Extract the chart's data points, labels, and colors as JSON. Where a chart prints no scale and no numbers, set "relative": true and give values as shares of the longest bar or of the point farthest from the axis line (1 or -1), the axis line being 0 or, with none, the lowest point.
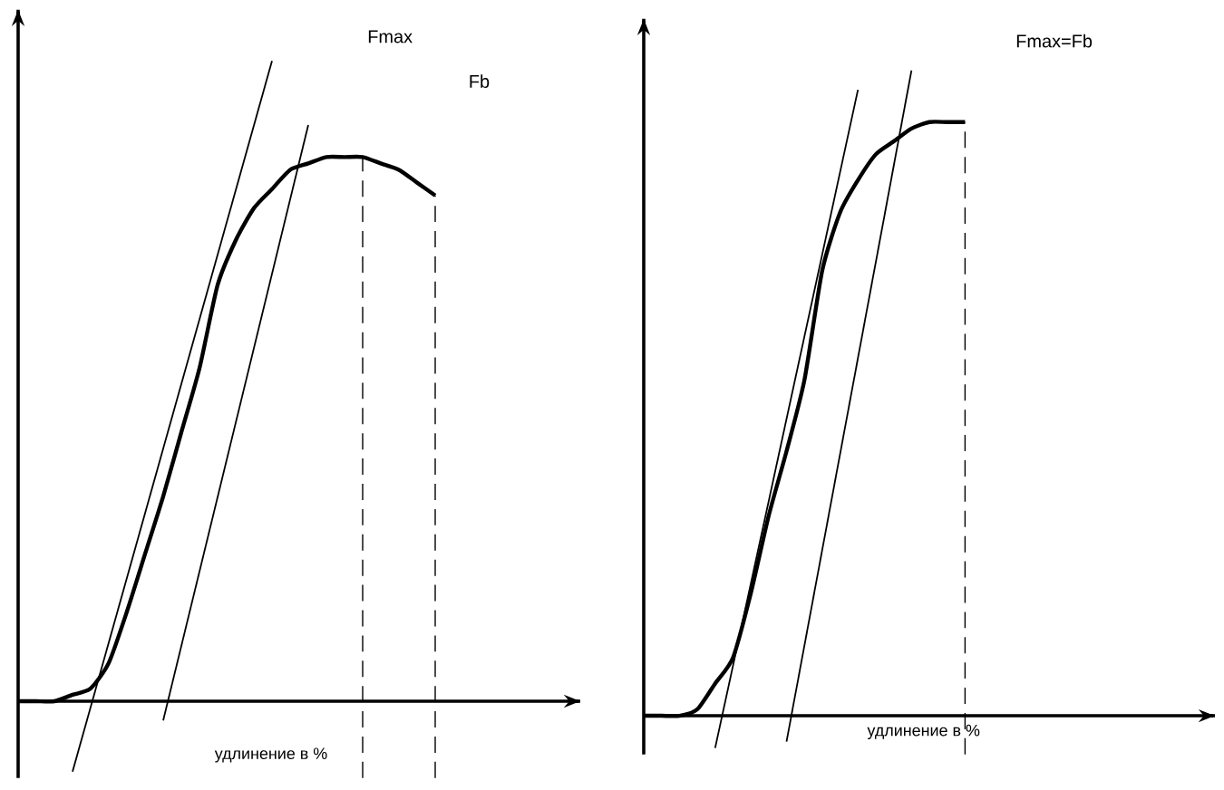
{
  "chart_data": [
    {
      "type": "line",
      "relative": true,
      "xlabel": "удлинение в %",
      "annotations": [
        "Fmax",
        "Fb"
      ],
      "marker": "none",
      "categories": [
        null,
        null,
        null,
        null,
        null,
        null,
        null,
        null,
        null,
        null,
        null,
        null,
        null,
        null,
        null,
        null,
        null,
        null,
        null,
        null,
        null,
        null,
        null,
        null,
        null,
        null,
        null,
        null,
        null,
        null,
        null,
        null
      ],
      "series": [
        {
          "color": "#000000",
          "values": [
            0,
            0,
            0,
            0.01,
            0.02,
            0.06,
            0.14,
            0.23,
            0.32,
            0.42,
            0.52,
            0.65,
            0.72,
            0.77,
            0.8,
            0.83,
            0.84,
            0.85,
            0.85,
            0.85,
            0.84,
            0.83,
            0.81,
            0.79,
            null,
            null,
            null,
            null,
            null,
            null,
            null,
            null
          ]
        },
        {
          "color": "#000000",
          "values": [
            null,
            null,
            null,
            -0.11,
            null,
            null,
            null,
            null,
            null,
            null,
            null,
            null,
            null,
            null,
            1.0,
            null,
            null,
            null,
            null,
            null,
            null,
            null,
            null,
            null,
            null,
            null,
            null,
            null,
            null,
            null,
            null,
            null
          ]
        },
        {
          "color": "#000000",
          "values": [
            null,
            null,
            null,
            null,
            null,
            null,
            null,
            null,
            -0.03,
            null,
            null,
            null,
            null,
            null,
            null,
            null,
            0.9,
            null,
            null,
            null,
            null,
            null,
            null,
            null,
            null,
            null,
            null,
            null,
            null,
            null,
            null,
            null
          ]
        }
      ]
    },
    {
      "type": "line",
      "relative": true,
      "xlabel": "удлинение в %",
      "annotations": [
        "Fmax=Fb"
      ],
      "marker": "none",
      "categories": [
        null,
        null,
        null,
        null,
        null,
        null,
        null,
        null,
        null,
        null,
        null,
        null,
        null,
        null,
        null,
        null,
        null,
        null,
        null,
        null,
        null,
        null,
        null,
        null,
        null,
        null,
        null,
        null,
        null,
        null,
        null,
        null,
        null
      ],
      "series": [
        {
          "color": "#000000",
          "values": [
            0,
            0,
            0,
            0.01,
            0.05,
            0.09,
            0.19,
            0.31,
            0.41,
            0.52,
            0.69,
            0.78,
            0.83,
            0.87,
            0.89,
            0.91,
            0.92,
            0.92,
            0.92,
            null,
            null,
            null,
            null,
            null,
            null,
            null,
            null,
            null,
            null,
            null,
            null,
            null,
            null
          ]
        },
        {
          "color": "#000000",
          "values": [
            null,
            null,
            null,
            null,
            -0.05,
            null,
            null,
            null,
            null,
            null,
            null,
            null,
            0.97,
            null,
            null,
            null,
            null,
            null,
            null,
            null,
            null,
            null,
            null,
            null,
            null,
            null,
            null,
            null,
            null,
            null,
            null,
            null,
            null
          ]
        },
        {
          "color": "#000000",
          "values": [
            null,
            null,
            null,
            null,
            null,
            null,
            null,
            null,
            -0.04,
            null,
            null,
            null,
            null,
            null,
            null,
            1.0,
            null,
            null,
            null,
            null,
            null,
            null,
            null,
            null,
            null,
            null,
            null,
            null,
            null,
            null,
            null,
            null,
            null
          ]
        }
      ]
    }
  ]
}
